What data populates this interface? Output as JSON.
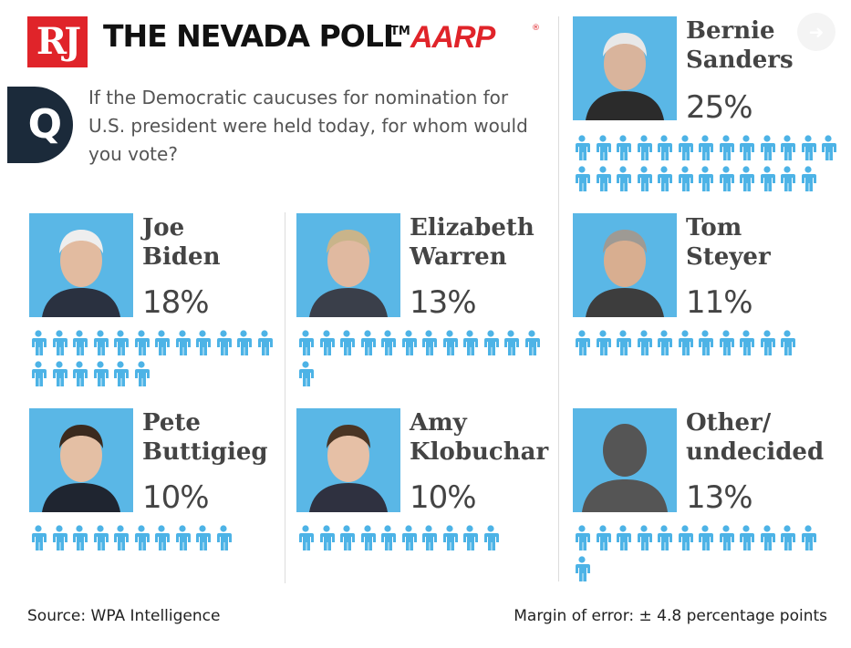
{
  "header": {
    "logo_text": "RJ",
    "title": "THE NEVADA POLL",
    "trademark": "TM",
    "sponsor": "AARP",
    "sponsor_reg": "®"
  },
  "question": {
    "badge": "Q",
    "text": "If the Democratic caucuses for nomination for U.S. president were held today, for whom would you vote?"
  },
  "colors": {
    "icon": "#4db3e6",
    "photo_bg": "#5ab7e6",
    "brand_red": "#e0242a",
    "q_badge": "#1b2a3a"
  },
  "chart_data": {
    "type": "pictogram",
    "unit": "1 person icon = 1 percentage point",
    "series": [
      {
        "name": "Bernie\nSanders",
        "value": 25,
        "label": "25%"
      },
      {
        "name": "Joe\nBiden",
        "value": 18,
        "label": "18%"
      },
      {
        "name": "Elizabeth\nWarren",
        "value": 13,
        "label": "13%"
      },
      {
        "name": "Tom\nSteyer",
        "value": 11,
        "label": "11%"
      },
      {
        "name": "Pete\nButtigieg",
        "value": 10,
        "label": "10%"
      },
      {
        "name": "Amy\nKlobuchar",
        "value": 10,
        "label": "10%"
      },
      {
        "name": "Other/\nundecided",
        "value": 13,
        "label": "13%"
      }
    ]
  },
  "footer": {
    "source": "Source: WPA Intelligence",
    "margin": "Margin of error: ± 4.8 percentage points"
  }
}
